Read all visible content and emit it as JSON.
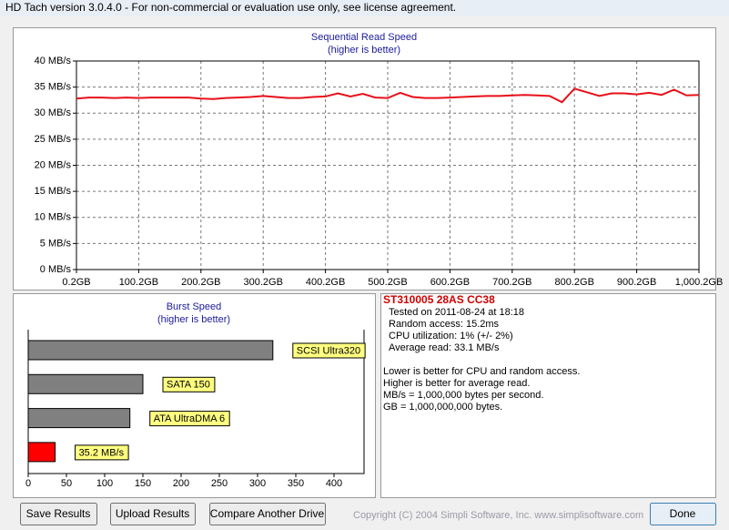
{
  "window": {
    "title": "HD Tach version 3.0.4.0  - For non-commercial or evaluation use only, see license agreement."
  },
  "chart_data": [
    {
      "type": "line",
      "title": "Sequential Read Speed",
      "subtitle": "(higher is better)",
      "x": [
        0.2,
        20.2,
        40.2,
        60.2,
        80.2,
        100.2,
        120.2,
        140.2,
        160.2,
        180.2,
        200.2,
        220.2,
        240.2,
        260.2,
        280.2,
        300.2,
        320.2,
        340.2,
        360.2,
        380.2,
        400.2,
        420.2,
        440.2,
        460.2,
        480.2,
        500.2,
        520.2,
        540.2,
        560.2,
        580.2,
        600.2,
        620.2,
        640.2,
        660.2,
        680.2,
        700.2,
        720.2,
        740.2,
        760.2,
        780.2,
        800.2,
        820.2,
        840.2,
        860.2,
        880.2,
        900.2,
        920.2,
        940.2,
        960.2,
        980.2,
        1000.2
      ],
      "series": [
        {
          "color": "#e8101a",
          "values": [
            32.8,
            33.0,
            33.0,
            32.9,
            33.0,
            32.9,
            33.0,
            33.0,
            33.0,
            33.0,
            32.8,
            32.7,
            32.9,
            33.0,
            33.1,
            33.3,
            33.1,
            32.9,
            32.9,
            33.1,
            33.2,
            33.8,
            33.2,
            33.7,
            33.0,
            32.9,
            33.9,
            33.1,
            32.9,
            32.9,
            33.0,
            33.1,
            33.2,
            33.3,
            33.3,
            33.4,
            33.5,
            33.4,
            33.3,
            32.1,
            34.7,
            34.0,
            33.3,
            33.8,
            33.8,
            33.6,
            33.9,
            33.5,
            34.5,
            33.4,
            33.5
          ]
        }
      ],
      "xlim": [
        0.2,
        1000.2
      ],
      "xticks": [
        {
          "value": 0.2,
          "label": "0.2GB"
        },
        {
          "value": 100.2,
          "label": "100.2GB"
        },
        {
          "value": 200.2,
          "label": "200.2GB"
        },
        {
          "value": 300.2,
          "label": "300.2GB"
        },
        {
          "value": 400.2,
          "label": "400.2GB"
        },
        {
          "value": 500.2,
          "label": "500.2GB"
        },
        {
          "value": 600.2,
          "label": "600.2GB"
        },
        {
          "value": 700.2,
          "label": "700.2GB"
        },
        {
          "value": 800.2,
          "label": "800.2GB"
        },
        {
          "value": 900.2,
          "label": "900.2GB"
        },
        {
          "value": 1000.2,
          "label": "1,000.2GB"
        }
      ],
      "ylim": [
        0,
        40
      ],
      "yticks": [
        {
          "value": 0,
          "label": "0 MB/s"
        },
        {
          "value": 5,
          "label": "5 MB/s"
        },
        {
          "value": 10,
          "label": "10 MB/s"
        },
        {
          "value": 15,
          "label": "15 MB/s"
        },
        {
          "value": 20,
          "label": "20 MB/s"
        },
        {
          "value": 25,
          "label": "25 MB/s"
        },
        {
          "value": 30,
          "label": "30 MB/s"
        },
        {
          "value": 35,
          "label": "35 MB/s"
        },
        {
          "value": 40,
          "label": "40 MB/s"
        }
      ],
      "grid": true
    },
    {
      "type": "barh",
      "title": "Burst Speed",
      "subtitle": "(higher is better)",
      "categories": [
        "SCSI Ultra320",
        "SATA 150",
        "ATA UltraDMA 6",
        null
      ],
      "values": [
        320,
        150,
        133,
        35.2
      ],
      "value_labels": [
        null,
        null,
        null,
        "35.2 MB/s"
      ],
      "colors": [
        "#808080",
        "#808080",
        "#808080",
        "#ff0000"
      ],
      "xlim": [
        0,
        400
      ],
      "xticks": [
        0,
        50,
        100,
        150,
        200,
        250,
        300,
        350,
        400
      ]
    }
  ],
  "info": {
    "drive": "ST310005 28AS CC38",
    "lines": [
      "Tested on 2011-08-24 at 18:18",
      "Random access: 15.2ms",
      "CPU utilization: 1% (+/- 2%)",
      "Average read: 33.1 MB/s"
    ],
    "notes": [
      "Lower is better for CPU and random access.",
      "Higher is better for average read.",
      "MB/s = 1,000,000 bytes per second.",
      "GB = 1,000,000,000 bytes."
    ]
  },
  "buttons": [
    "Save Results",
    "Upload Results",
    "Compare Another Drive",
    "Done"
  ],
  "copyright": "Copyright (C) 2004 Simpli Software, Inc. www.simplisoftware.com"
}
